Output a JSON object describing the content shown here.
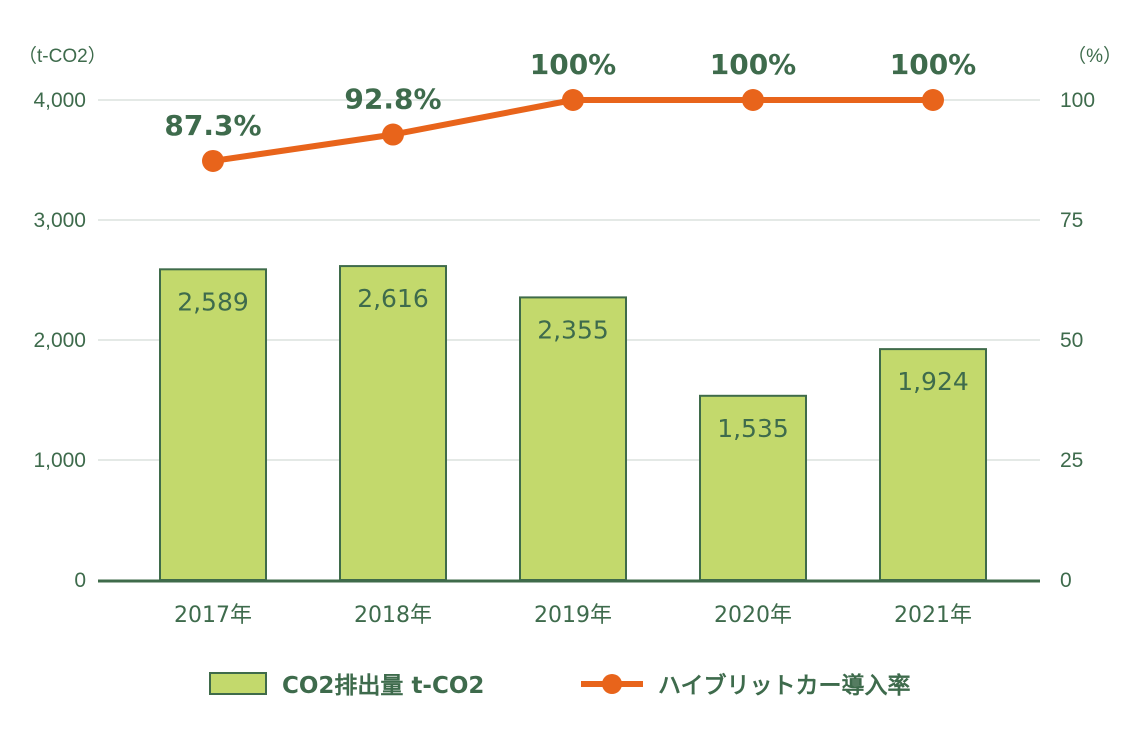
{
  "chart_data": {
    "type": "bar",
    "categories": [
      "2017年",
      "2018年",
      "2019年",
      "2020年",
      "2021年"
    ],
    "series": [
      {
        "name": "CO2排出量 t-CO2",
        "type": "bar",
        "axis": "left",
        "color": "#c3d96c",
        "border_color": "#3f6b4a",
        "values": [
          2589,
          2616,
          2355,
          1535,
          1924
        ],
        "data_labels": [
          "2,589",
          "2,616",
          "2,355",
          "1,535",
          "1,924"
        ]
      },
      {
        "name": "ハイブリットカー導入率",
        "type": "line",
        "axis": "right",
        "color": "#e8641b",
        "values": [
          87.3,
          92.8,
          100,
          100,
          100
        ],
        "data_labels": [
          "87.3%",
          "92.8%",
          "100%",
          "100%",
          "100%"
        ]
      }
    ],
    "y_left": {
      "unit": "（t-CO2）",
      "ylim": [
        0,
        4000
      ],
      "ticks": [
        "0",
        "1,000",
        "2,000",
        "3,000",
        "4,000"
      ]
    },
    "y_right": {
      "unit": "（%）",
      "ylim": [
        0,
        100
      ],
      "ticks": [
        "0",
        "25",
        "50",
        "75",
        "100"
      ]
    },
    "grid": true,
    "legend": {
      "placement": "bottom-center",
      "bar_label": "CO2排出量 t-CO2",
      "line_label": "ハイブリットカー導入率"
    },
    "colors": {
      "text": "#3e6b4c",
      "grid": "#c9d3cd",
      "axis": "#3f6b4a"
    }
  }
}
